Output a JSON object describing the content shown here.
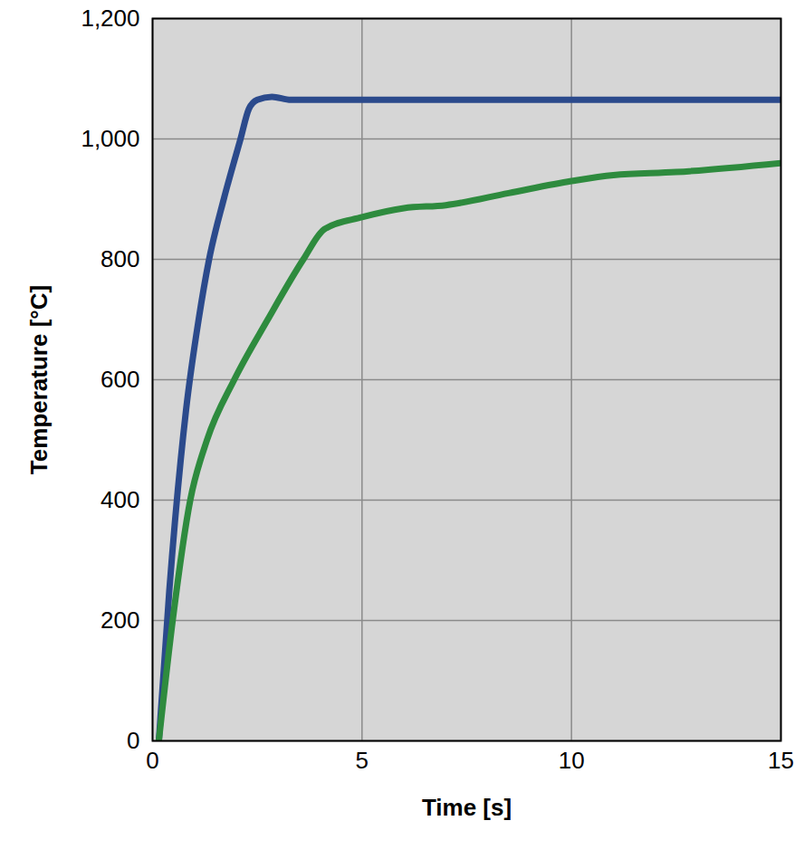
{
  "chart_data": {
    "type": "line",
    "x_label": "Time [s]",
    "y_label": "Temperature [°C]",
    "xlim": [
      0,
      15
    ],
    "ylim": [
      0,
      1200
    ],
    "xticks": [
      0,
      5,
      10,
      15
    ],
    "yticks": [
      0,
      200,
      400,
      600,
      800,
      1000,
      1200
    ],
    "grid": true,
    "series": [
      {
        "color": "#2b4a8c",
        "x": [
          0.15,
          0.4,
          0.8,
          1.1,
          1.35,
          1.7,
          2.1,
          2.3,
          2.5,
          2.85,
          3.3,
          15
        ],
        "values": [
          0,
          250,
          550,
          700,
          800,
          900,
          1000,
          1050,
          1065,
          1070,
          1065,
          1065
        ]
      },
      {
        "color": "#2e8b3e",
        "x": [
          0.15,
          0.48,
          0.9,
          1.3,
          1.95,
          2.75,
          3.6,
          4.1,
          5,
          6,
          7,
          8.5,
          10,
          11,
          12.5,
          15
        ],
        "values": [
          0,
          200,
          400,
          500,
          600,
          700,
          800,
          850,
          870,
          885,
          890,
          910,
          930,
          940,
          945,
          960
        ]
      }
    ]
  }
}
